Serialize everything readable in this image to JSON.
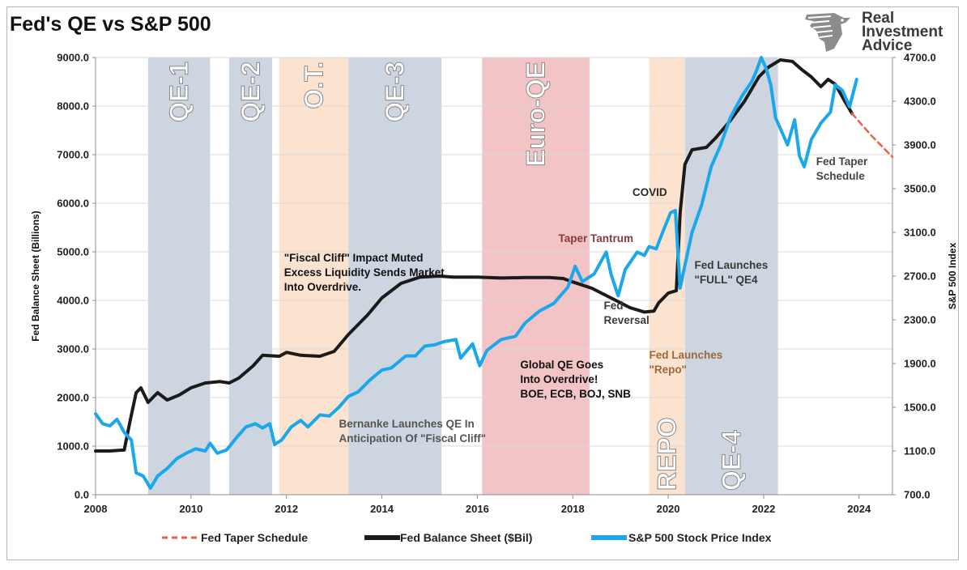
{
  "title": "Fed's QE vs S&P 500",
  "logo": {
    "line1": "Real",
    "line2": "Investment",
    "line3": "Advice"
  },
  "colors": {
    "balance": "#1b1b1b",
    "sp500": "#1aa7ec",
    "taper": "#e8604c",
    "qe_band": "#cdd5e0",
    "ot_band": "#fbe3cf",
    "euro_band": "#f2c4c6"
  },
  "chart_data": {
    "type": "line",
    "title": "Fed's QE vs S&P 500",
    "xlabel": "",
    "ylabel_left": "Fed Balance Sheet (Billions)",
    "ylabel_right": "S&P 500 Index",
    "xlim": [
      2008,
      2024.7
    ],
    "ylim_left": [
      0,
      9000
    ],
    "ylim_right": [
      700,
      4700
    ],
    "x_ticks": [
      "2008",
      "2010",
      "2012",
      "2014",
      "2016",
      "2018",
      "2020",
      "2022",
      "2024"
    ],
    "y_ticks_left": [
      "0.0",
      "1000.0",
      "2000.0",
      "3000.0",
      "4000.0",
      "5000.0",
      "6000.0",
      "7000.0",
      "8000.0",
      "9000.0"
    ],
    "y_ticks_right": [
      "700.0",
      "1100.0",
      "1500.0",
      "1900.0",
      "2300.0",
      "2700.0",
      "3100.0",
      "3500.0",
      "3900.0",
      "4300.0",
      "4700.0"
    ],
    "grid": "horizontal",
    "legend_position": "bottom",
    "regions": [
      {
        "label": "QE-1",
        "start": 2009.1,
        "end": 2010.4,
        "kind": "qe"
      },
      {
        "label": "QE-2",
        "start": 2010.8,
        "end": 2011.7,
        "kind": "qe"
      },
      {
        "label": "O.T.",
        "start": 2011.85,
        "end": 2013.3,
        "kind": "ot"
      },
      {
        "label": "QE-3",
        "start": 2013.3,
        "end": 2015.25,
        "kind": "qe"
      },
      {
        "label": "Euro-QE",
        "start": 2016.1,
        "end": 2018.35,
        "kind": "euro"
      },
      {
        "label": "REPO",
        "start": 2019.6,
        "end": 2020.35,
        "kind": "ot"
      },
      {
        "label": "QE-4",
        "start": 2020.35,
        "end": 2022.3,
        "kind": "qe"
      }
    ],
    "series": [
      {
        "name": "Fed Taper Schedule",
        "axis": "left",
        "style": "dashed",
        "points": [
          [
            2023.85,
            7850
          ],
          [
            2024.25,
            7400
          ],
          [
            2024.7,
            6950
          ]
        ]
      },
      {
        "name": "Fed Balance Sheet ($Bil)",
        "axis": "left",
        "style": "solid",
        "points": [
          [
            2008.0,
            900
          ],
          [
            2008.3,
            900
          ],
          [
            2008.6,
            920
          ],
          [
            2008.72,
            1500
          ],
          [
            2008.85,
            2100
          ],
          [
            2008.95,
            2200
          ],
          [
            2009.1,
            1900
          ],
          [
            2009.3,
            2100
          ],
          [
            2009.5,
            1950
          ],
          [
            2009.75,
            2050
          ],
          [
            2010.0,
            2200
          ],
          [
            2010.3,
            2300
          ],
          [
            2010.6,
            2330
          ],
          [
            2010.8,
            2300
          ],
          [
            2011.0,
            2400
          ],
          [
            2011.3,
            2650
          ],
          [
            2011.5,
            2870
          ],
          [
            2011.85,
            2850
          ],
          [
            2012.0,
            2930
          ],
          [
            2012.3,
            2870
          ],
          [
            2012.7,
            2850
          ],
          [
            2013.0,
            2950
          ],
          [
            2013.3,
            3300
          ],
          [
            2013.7,
            3700
          ],
          [
            2014.0,
            4050
          ],
          [
            2014.4,
            4350
          ],
          [
            2014.8,
            4480
          ],
          [
            2015.2,
            4500
          ],
          [
            2015.5,
            4480
          ],
          [
            2016.0,
            4480
          ],
          [
            2016.5,
            4460
          ],
          [
            2017.0,
            4470
          ],
          [
            2017.5,
            4470
          ],
          [
            2017.8,
            4450
          ],
          [
            2018.0,
            4380
          ],
          [
            2018.4,
            4250
          ],
          [
            2018.8,
            4050
          ],
          [
            2019.2,
            3850
          ],
          [
            2019.5,
            3760
          ],
          [
            2019.7,
            3780
          ],
          [
            2019.8,
            3950
          ],
          [
            2020.0,
            4150
          ],
          [
            2020.17,
            4200
          ],
          [
            2020.25,
            5800
          ],
          [
            2020.35,
            6800
          ],
          [
            2020.5,
            7100
          ],
          [
            2020.8,
            7150
          ],
          [
            2021.0,
            7350
          ],
          [
            2021.3,
            7700
          ],
          [
            2021.6,
            8100
          ],
          [
            2021.9,
            8600
          ],
          [
            2022.1,
            8800
          ],
          [
            2022.35,
            8950
          ],
          [
            2022.6,
            8920
          ],
          [
            2022.8,
            8750
          ],
          [
            2023.0,
            8600
          ],
          [
            2023.2,
            8400
          ],
          [
            2023.35,
            8550
          ],
          [
            2023.5,
            8450
          ],
          [
            2023.7,
            8100
          ],
          [
            2023.85,
            7850
          ]
        ]
      },
      {
        "name": "S&P 500 Stock Price Index",
        "axis": "right",
        "style": "solid",
        "points": [
          [
            2008.0,
            1440
          ],
          [
            2008.15,
            1350
          ],
          [
            2008.3,
            1330
          ],
          [
            2008.45,
            1390
          ],
          [
            2008.6,
            1270
          ],
          [
            2008.75,
            1200
          ],
          [
            2008.85,
            900
          ],
          [
            2009.0,
            870
          ],
          [
            2009.15,
            760
          ],
          [
            2009.3,
            870
          ],
          [
            2009.5,
            940
          ],
          [
            2009.7,
            1030
          ],
          [
            2009.9,
            1080
          ],
          [
            2010.1,
            1120
          ],
          [
            2010.3,
            1100
          ],
          [
            2010.4,
            1170
          ],
          [
            2010.55,
            1080
          ],
          [
            2010.75,
            1110
          ],
          [
            2010.95,
            1220
          ],
          [
            2011.15,
            1320
          ],
          [
            2011.35,
            1350
          ],
          [
            2011.5,
            1310
          ],
          [
            2011.65,
            1350
          ],
          [
            2011.75,
            1160
          ],
          [
            2011.9,
            1200
          ],
          [
            2012.1,
            1320
          ],
          [
            2012.3,
            1380
          ],
          [
            2012.45,
            1320
          ],
          [
            2012.7,
            1430
          ],
          [
            2012.9,
            1420
          ],
          [
            2013.1,
            1500
          ],
          [
            2013.3,
            1600
          ],
          [
            2013.5,
            1640
          ],
          [
            2013.75,
            1750
          ],
          [
            2014.0,
            1840
          ],
          [
            2014.2,
            1860
          ],
          [
            2014.5,
            1970
          ],
          [
            2014.7,
            1970
          ],
          [
            2014.9,
            2060
          ],
          [
            2015.1,
            2070
          ],
          [
            2015.3,
            2100
          ],
          [
            2015.55,
            2120
          ],
          [
            2015.65,
            1950
          ],
          [
            2015.9,
            2080
          ],
          [
            2016.05,
            1880
          ],
          [
            2016.2,
            2020
          ],
          [
            2016.5,
            2120
          ],
          [
            2016.8,
            2150
          ],
          [
            2017.0,
            2270
          ],
          [
            2017.3,
            2380
          ],
          [
            2017.6,
            2450
          ],
          [
            2017.9,
            2600
          ],
          [
            2018.05,
            2790
          ],
          [
            2018.2,
            2650
          ],
          [
            2018.45,
            2720
          ],
          [
            2018.7,
            2920
          ],
          [
            2018.8,
            2720
          ],
          [
            2018.95,
            2520
          ],
          [
            2019.1,
            2760
          ],
          [
            2019.35,
            2920
          ],
          [
            2019.5,
            2890
          ],
          [
            2019.6,
            2970
          ],
          [
            2019.75,
            2950
          ],
          [
            2019.9,
            3120
          ],
          [
            2020.05,
            3280
          ],
          [
            2020.15,
            3300
          ],
          [
            2020.25,
            2590
          ],
          [
            2020.35,
            2800
          ],
          [
            2020.5,
            3100
          ],
          [
            2020.7,
            3350
          ],
          [
            2020.9,
            3700
          ],
          [
            2021.1,
            3900
          ],
          [
            2021.3,
            4150
          ],
          [
            2021.55,
            4350
          ],
          [
            2021.75,
            4480
          ],
          [
            2021.85,
            4580
          ],
          [
            2021.95,
            4700
          ],
          [
            2022.05,
            4600
          ],
          [
            2022.15,
            4450
          ],
          [
            2022.25,
            4150
          ],
          [
            2022.4,
            4000
          ],
          [
            2022.5,
            3900
          ],
          [
            2022.65,
            4130
          ],
          [
            2022.75,
            3800
          ],
          [
            2022.85,
            3700
          ],
          [
            2023.0,
            3950
          ],
          [
            2023.2,
            4100
          ],
          [
            2023.4,
            4200
          ],
          [
            2023.5,
            4450
          ],
          [
            2023.65,
            4400
          ],
          [
            2023.8,
            4250
          ],
          [
            2023.95,
            4500
          ]
        ]
      }
    ],
    "annotations": [
      {
        "lines": [
          "\"Fiscal Cliff\" Impact Muted",
          "Excess Liquidity Sends Market",
          "Into Overdrive."
        ],
        "x": 2011.95,
        "y": 4800,
        "color": "#111111"
      },
      {
        "lines": [
          "Taper Tantrum"
        ],
        "x": 2017.7,
        "y": 5200,
        "color": "#8a3a3a"
      },
      {
        "lines": [
          "COVID"
        ],
        "x": 2019.25,
        "y": 6150,
        "color": "#2a2a2a"
      },
      {
        "lines": [
          "Fed Launches",
          "\"FULL\" QE4"
        ],
        "x": 2020.55,
        "y": 4650,
        "color": "#3a3a3a"
      },
      {
        "lines": [
          "Fed",
          "Reversal"
        ],
        "x": 2018.65,
        "y": 3820,
        "color": "#3a3a3a"
      },
      {
        "lines": [
          "Fed Launches",
          "\"Repo\""
        ],
        "x": 2019.6,
        "y": 2800,
        "color": "#9a6a3a"
      },
      {
        "lines": [
          "Global QE Goes",
          "Into Overdrive!",
          "BOE, ECB, BOJ, SNB"
        ],
        "x": 2016.9,
        "y": 2600,
        "color": "#111111"
      },
      {
        "lines": [
          "Bernanke Launches QE In",
          "Anticipation Of \"Fiscal Cliff\""
        ],
        "x": 2013.1,
        "y": 1380,
        "color": "#555555"
      },
      {
        "lines": [
          "Fed Taper",
          "Schedule"
        ],
        "x": 2023.1,
        "y": 6780,
        "color": "#444444"
      }
    ]
  }
}
